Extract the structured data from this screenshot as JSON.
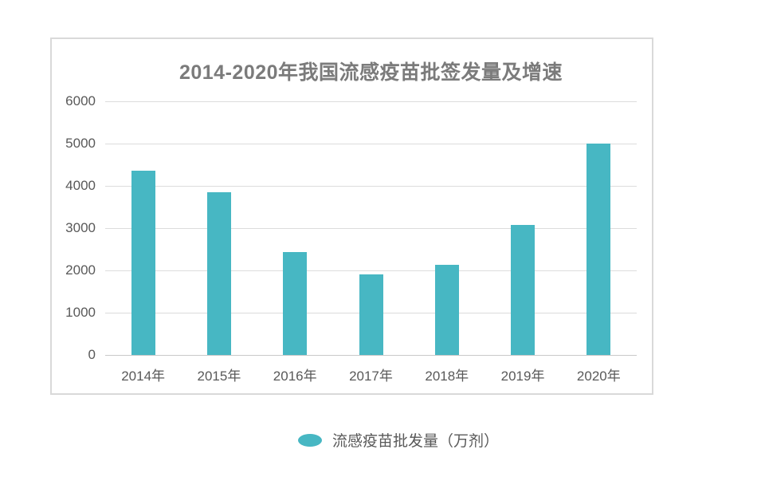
{
  "chart": {
    "legend": {
      "label": "流感疫苗批发量（万剂）",
      "marker": "ellipse"
    },
    "colors": {
      "bar": "#47b7c3",
      "grid": "#dcdcdc",
      "axis_line": "#c9c9c9",
      "title_text": "#7b7b7b",
      "tick_text": "#595959",
      "frame_border": "#d9d9d9",
      "background": "#ffffff"
    }
  },
  "chart_data": {
    "type": "bar",
    "title": "2014-2020年我国流感疫苗批签发量及增速",
    "categories": [
      "2014年",
      "2015年",
      "2016年",
      "2017年",
      "2018年",
      "2019年",
      "2020年"
    ],
    "series": [
      {
        "name": "流感疫苗批发量（万剂）",
        "values": [
          4366,
          3846,
          2428,
          1906,
          2124,
          3078,
          5005
        ]
      }
    ],
    "xlabel": "",
    "ylabel": "",
    "ylim": [
      0,
      6000
    ],
    "yticks": [
      0,
      1000,
      2000,
      3000,
      4000,
      5000,
      6000
    ],
    "grid": true,
    "legend_position": "bottom-center",
    "bar_color": "#47b7c3"
  }
}
